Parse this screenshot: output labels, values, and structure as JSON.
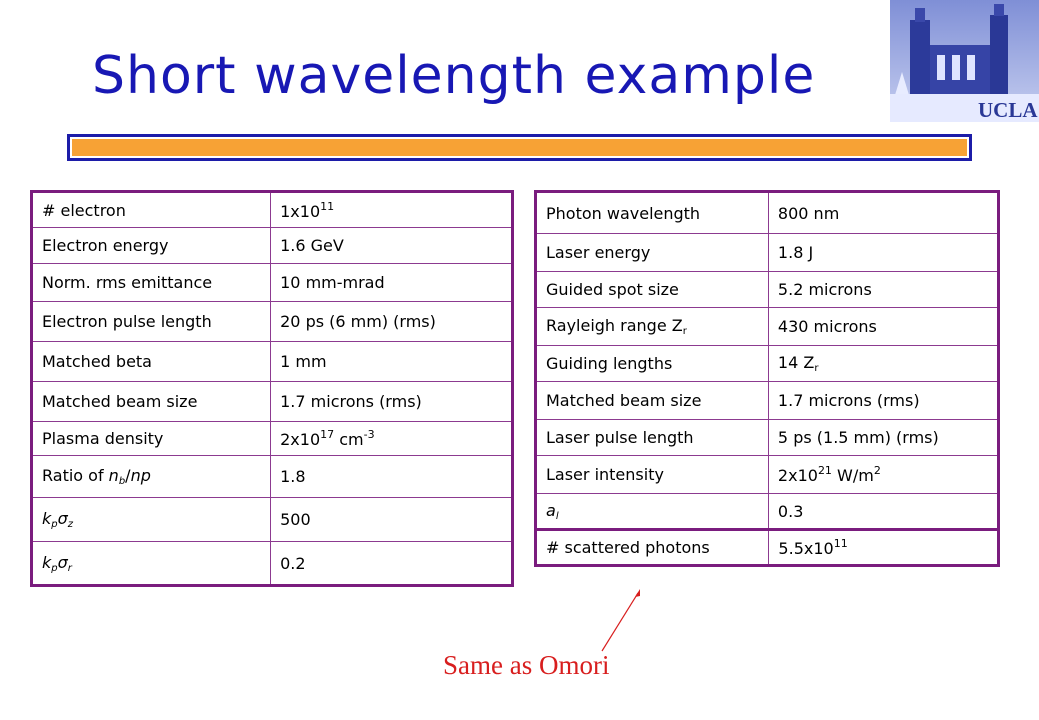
{
  "title": "Short wavelength example",
  "logo": {
    "text": "UCLA"
  },
  "left_table": {
    "rows": [
      {
        "param": "# electron",
        "val_main": "1x10",
        "val_sup": "11",
        "val_end": ""
      },
      {
        "param": "Electron energy",
        "val_main": "1.6 GeV"
      },
      {
        "param": "Norm. rms emittance",
        "val_main": "10 mm-mrad"
      },
      {
        "param": "Electron pulse length",
        "val_main": "20 ps (6 mm) (rms)"
      },
      {
        "param": "Matched beta",
        "val_main": "1 mm"
      },
      {
        "param": "Matched beam size",
        "val_main": "1.7 microns (rms)"
      },
      {
        "param": "Plasma density",
        "val_main": "2x10",
        "val_sup": "17",
        "val_mid": " cm",
        "val_sup2": "-3"
      },
      {
        "param_pre": "Ratio of ",
        "param_it": "n",
        "param_sub": "b",
        "param_post": "/",
        "param_it2": "np",
        "val_main": "1.8"
      },
      {
        "param_it": "k",
        "param_sub": "p",
        "param_sym": "σ",
        "param_sub2": "z",
        "val_main": "500"
      },
      {
        "param_it": "k",
        "param_sub": "p",
        "param_sym": "σ",
        "param_sub2": "r",
        "val_main": "0.2"
      }
    ]
  },
  "right_table": {
    "rows": [
      {
        "param": "Photon wavelength",
        "val_main": "800 nm"
      },
      {
        "param": "Laser energy",
        "val_main": "1.8 J"
      },
      {
        "param": "Guided spot size",
        "val_main": "5.2 microns"
      },
      {
        "param": "Rayleigh range Z",
        "param_sub": "r",
        "val_main": "430 microns"
      },
      {
        "param": "Guiding lengths",
        "val_main": "14 Z",
        "val_sub": "r"
      },
      {
        "param": "Matched beam size",
        "val_main": "1.7 microns (rms)"
      },
      {
        "param": "Laser pulse length",
        "val_main": "5 ps (1.5 mm) (rms)"
      },
      {
        "param": "Laser intensity",
        "val_main": "2x10",
        "val_sup": "21",
        "val_mid": " W/m",
        "val_sup2": "2"
      },
      {
        "param_it": "a",
        "param_sub": "l",
        "val_main": "0.3"
      }
    ]
  },
  "extra_table": {
    "param": "# scattered photons",
    "val_main": "5.5x10",
    "val_sup": "11"
  },
  "caption": "Same as Omori"
}
